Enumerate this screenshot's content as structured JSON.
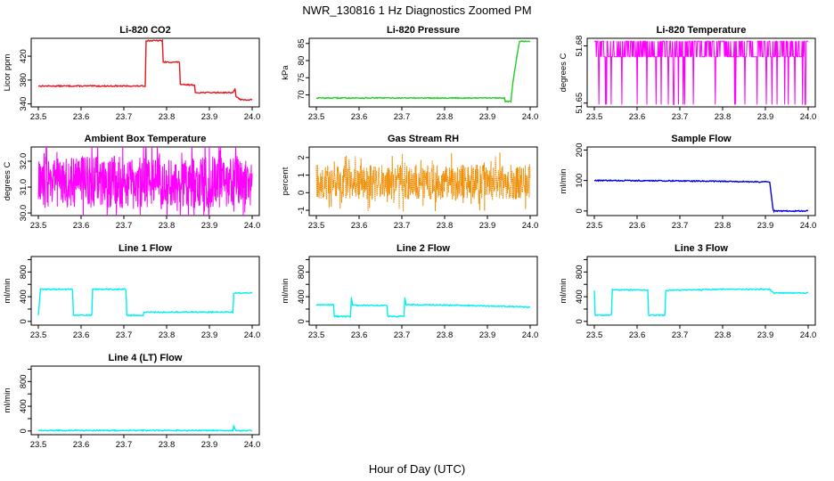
{
  "figure": {
    "title": "NWR_130816  1 Hz Diagnostics Zoomed PM",
    "xlabel": "Hour of Day (UTC)"
  },
  "chart_data": [
    {
      "type": "line",
      "title": "Li-820 CO2",
      "ylabel": "Licor ppm",
      "color": "#e8141b",
      "xlim": [
        23.5,
        24.0
      ],
      "xticks": [
        23.5,
        23.6,
        23.7,
        23.8,
        23.9,
        24.0
      ],
      "ylim": [
        335,
        450
      ],
      "yticks": [
        340,
        380,
        420
      ],
      "ytick_labels": [
        "340",
        "380",
        "420"
      ],
      "series": [
        {
          "x": [
            23.5,
            23.75,
            23.752,
            23.79,
            23.792,
            23.83,
            23.832,
            23.865,
            23.867,
            23.955,
            23.96,
            23.962,
            23.97,
            23.972,
            24.0
          ],
          "y": [
            370,
            370,
            446,
            446,
            410,
            410,
            372,
            372,
            359,
            359,
            366,
            352,
            349,
            347,
            347
          ]
        }
      ]
    },
    {
      "type": "line",
      "title": "Li-820 Pressure",
      "ylabel": "kPa",
      "color": "#22cc22",
      "xlim": [
        23.5,
        24.0
      ],
      "xticks": [
        23.5,
        23.6,
        23.7,
        23.8,
        23.9,
        24.0
      ],
      "ylim": [
        66.5,
        86.5
      ],
      "yticks": [
        70,
        75,
        80,
        85
      ],
      "ytick_labels": [
        "70",
        "75",
        "80",
        "85"
      ],
      "series": [
        {
          "x": [
            23.5,
            23.94,
            23.942,
            23.955,
            23.96,
            23.97,
            23.975,
            23.98,
            24.0
          ],
          "y": [
            69.1,
            69.1,
            68.1,
            68.1,
            74.0,
            82.0,
            85.5,
            85.6,
            85.6
          ]
        }
      ]
    },
    {
      "type": "line",
      "title": "Li-820 Temperature",
      "ylabel": "degrees C",
      "color": "#ff00ff",
      "xlim": [
        23.5,
        24.0
      ],
      "xticks": [
        23.5,
        23.6,
        23.7,
        23.8,
        23.9,
        24.0
      ],
      "ylim": [
        51.648,
        51.684
      ],
      "yticks": [
        51.65,
        51.68
      ],
      "ytick_labels": [
        "51.65",
        "51.68"
      ],
      "series": [
        {
          "levels": [
            51.6492,
            51.6743,
            51.6825
          ],
          "x_range": [
            23.5,
            24.0
          ]
        }
      ]
    },
    {
      "type": "line",
      "title": "Ambient Box Temperature",
      "ylabel": "degrees C",
      "color": "#ff00ff",
      "xlim": [
        23.5,
        24.0
      ],
      "xticks": [
        23.5,
        23.6,
        23.7,
        23.8,
        23.9,
        24.0
      ],
      "ylim": [
        29.9,
        32.55
      ],
      "yticks": [
        30.0,
        31.0,
        32.0
      ],
      "ytick_labels": [
        "30.0",
        "31.0",
        "32.0"
      ],
      "series": [
        {
          "band": [
            30.3,
            32.3
          ],
          "center": 31.2,
          "x_range": [
            23.5,
            24.0
          ]
        }
      ]
    },
    {
      "type": "line",
      "title": "Gas Stream RH",
      "ylabel": "percent",
      "color": "#ee8c00",
      "xlim": [
        23.5,
        24.0
      ],
      "xticks": [
        23.5,
        23.6,
        23.7,
        23.8,
        23.9,
        24.0
      ],
      "ylim": [
        -1.3,
        2.6
      ],
      "yticks": [
        -1,
        0,
        1,
        2
      ],
      "ytick_labels": [
        "-1",
        "0",
        "1",
        "2"
      ],
      "series": [
        {
          "band": [
            -0.4,
            1.6
          ],
          "center": 0.6,
          "x_range": [
            23.5,
            24.0
          ]
        }
      ]
    },
    {
      "type": "line",
      "title": "Sample Flow",
      "ylabel": "ml/min",
      "color": "#0000dd",
      "xlim": [
        23.5,
        24.0
      ],
      "xticks": [
        23.5,
        23.6,
        23.7,
        23.8,
        23.9,
        24.0
      ],
      "ylim": [
        -15,
        210
      ],
      "yticks": [
        0,
        100,
        200
      ],
      "ytick_labels": [
        "0",
        "100",
        "200"
      ],
      "series": [
        {
          "x": [
            23.5,
            23.7,
            23.8,
            23.91,
            23.918,
            23.92,
            24.0
          ],
          "y": [
            100,
            99,
            97,
            95,
            5,
            0,
            0
          ]
        }
      ]
    },
    {
      "type": "line",
      "title": "Line 1 Flow",
      "ylabel": "ml/min",
      "color": "#00f0f0",
      "xlim": [
        23.5,
        24.0
      ],
      "xticks": [
        23.5,
        23.6,
        23.7,
        23.8,
        23.9,
        24.0
      ],
      "ylim": [
        -60,
        1050
      ],
      "yticks": [
        0,
        200,
        400,
        600,
        800,
        1000
      ],
      "ytick_labels": [
        "0",
        "400",
        "800"
      ],
      "series": [
        {
          "x": [
            23.5,
            23.505,
            23.58,
            23.582,
            23.625,
            23.627,
            23.705,
            23.707,
            23.745,
            23.747,
            23.955,
            23.957,
            24.0
          ],
          "y": [
            100,
            520,
            520,
            100,
            100,
            520,
            520,
            100,
            100,
            150,
            150,
            460,
            460
          ]
        }
      ]
    },
    {
      "type": "line",
      "title": "Line 2 Flow",
      "ylabel": "ml/min",
      "color": "#00f0f0",
      "xlim": [
        23.5,
        24.0
      ],
      "xticks": [
        23.5,
        23.6,
        23.7,
        23.8,
        23.9,
        24.0
      ],
      "ylim": [
        -60,
        1050
      ],
      "yticks": [
        0,
        200,
        400,
        600,
        800,
        1000
      ],
      "ytick_labels": [
        "0",
        "400",
        "800"
      ],
      "series": [
        {
          "x": [
            23.5,
            23.54,
            23.542,
            23.58,
            23.582,
            23.585,
            23.665,
            23.667,
            23.705,
            23.707,
            23.71,
            23.8,
            23.96,
            24.0
          ],
          "y": [
            270,
            270,
            80,
            80,
            390,
            260,
            260,
            80,
            80,
            380,
            270,
            265,
            240,
            230
          ]
        }
      ]
    },
    {
      "type": "line",
      "title": "Line 3 Flow",
      "ylabel": "ml/min",
      "color": "#00f0f0",
      "xlim": [
        23.5,
        24.0
      ],
      "xticks": [
        23.5,
        23.6,
        23.7,
        23.8,
        23.9,
        24.0
      ],
      "ylim": [
        -60,
        1050
      ],
      "yticks": [
        0,
        200,
        400,
        600,
        800,
        1000
      ],
      "ytick_labels": [
        "0",
        "400",
        "800"
      ],
      "series": [
        {
          "x": [
            23.5,
            23.502,
            23.54,
            23.542,
            23.625,
            23.627,
            23.665,
            23.667,
            23.8,
            23.91,
            23.92,
            24.0
          ],
          "y": [
            500,
            100,
            100,
            510,
            510,
            100,
            100,
            500,
            520,
            520,
            460,
            460
          ]
        }
      ]
    },
    {
      "type": "line",
      "title": "Line 4 (LT) Flow",
      "ylabel": "ml/min",
      "color": "#00f0f0",
      "xlim": [
        23.5,
        24.0
      ],
      "xticks": [
        23.5,
        23.6,
        23.7,
        23.8,
        23.9,
        24.0
      ],
      "ylim": [
        -60,
        1050
      ],
      "yticks": [
        0,
        200,
        400,
        600,
        800,
        1000
      ],
      "ytick_labels": [
        "0",
        "400",
        "800"
      ],
      "series": [
        {
          "x": [
            23.5,
            23.955,
            23.957,
            23.959,
            23.962,
            24.0
          ],
          "y": [
            8,
            8,
            90,
            40,
            8,
            8
          ]
        }
      ]
    }
  ]
}
